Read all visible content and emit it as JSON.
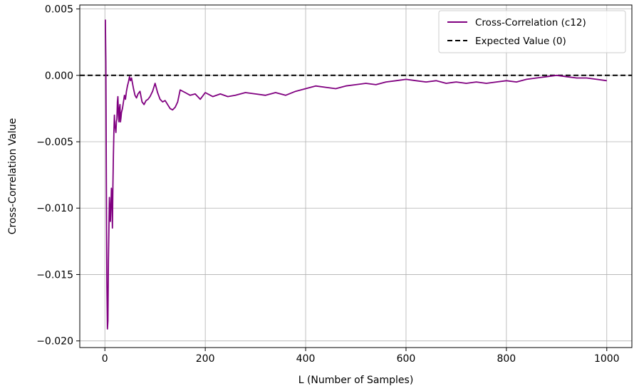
{
  "chart_data": {
    "type": "line",
    "xlabel": "L (Number of Samples)",
    "ylabel": "Cross-Correlation Value",
    "xlim": [
      -50,
      1050
    ],
    "ylim": [
      -0.0205,
      0.0053
    ],
    "x_ticks": [
      0,
      200,
      400,
      600,
      800,
      1000
    ],
    "x_tick_labels": [
      "0",
      "200",
      "400",
      "600",
      "800",
      "1000"
    ],
    "y_ticks": [
      0.005,
      0.0,
      -0.005,
      -0.01,
      -0.015,
      -0.02
    ],
    "y_tick_labels": [
      "0.005",
      "0.000",
      "−0.005",
      "−0.010",
      "−0.015",
      "−0.020"
    ],
    "grid": true,
    "legend_position": "top-right",
    "series": [
      {
        "name": "Cross-Correlation (c12)",
        "color": "#800080",
        "style": "solid",
        "x": [
          1,
          2,
          3,
          4,
          5,
          6,
          7,
          8,
          9,
          10,
          11,
          12,
          13,
          14,
          15,
          16,
          17,
          18,
          19,
          20,
          21,
          22,
          23,
          24,
          25,
          26,
          27,
          28,
          29,
          30,
          31,
          32,
          33,
          35,
          37,
          39,
          41,
          43,
          45,
          47,
          49,
          51,
          53,
          55,
          57,
          60,
          63,
          66,
          70,
          74,
          78,
          82,
          86,
          90,
          95,
          100,
          105,
          110,
          115,
          120,
          125,
          130,
          135,
          140,
          145,
          150,
          160,
          170,
          180,
          190,
          200,
          215,
          230,
          245,
          260,
          280,
          300,
          320,
          340,
          360,
          380,
          400,
          420,
          440,
          460,
          480,
          500,
          520,
          540,
          560,
          580,
          600,
          620,
          640,
          660,
          680,
          700,
          720,
          740,
          760,
          780,
          800,
          820,
          840,
          860,
          880,
          900,
          920,
          940,
          960,
          980,
          1000
        ],
        "y": [
          0.0042,
          0.001,
          -0.008,
          -0.0155,
          -0.0191,
          -0.0185,
          -0.014,
          -0.0115,
          -0.0092,
          -0.0102,
          -0.011,
          -0.0098,
          -0.0085,
          -0.009,
          -0.0115,
          -0.0083,
          -0.006,
          -0.0042,
          -0.003,
          -0.0038,
          -0.004,
          -0.0043,
          -0.0035,
          -0.0033,
          -0.002,
          -0.0016,
          -0.003,
          -0.0035,
          -0.0025,
          -0.0022,
          -0.0035,
          -0.0032,
          -0.0028,
          -0.0025,
          -0.002,
          -0.0015,
          -0.0018,
          -0.0012,
          -0.0008,
          -0.0005,
          -0.0001,
          -0.0004,
          -0.0002,
          -0.0006,
          -0.001,
          -0.0015,
          -0.0017,
          -0.0014,
          -0.0012,
          -0.002,
          -0.0022,
          -0.0019,
          -0.0018,
          -0.0016,
          -0.0012,
          -0.0006,
          -0.0013,
          -0.0018,
          -0.002,
          -0.0019,
          -0.0022,
          -0.0025,
          -0.0026,
          -0.0024,
          -0.002,
          -0.0011,
          -0.0013,
          -0.0015,
          -0.0014,
          -0.0018,
          -0.0013,
          -0.0016,
          -0.0014,
          -0.0016,
          -0.0015,
          -0.0013,
          -0.0014,
          -0.0015,
          -0.0013,
          -0.0015,
          -0.0012,
          -0.001,
          -0.0008,
          -0.0009,
          -0.001,
          -0.0008,
          -0.0007,
          -0.0006,
          -0.0007,
          -0.0005,
          -0.0004,
          -0.0003,
          -0.0004,
          -0.0005,
          -0.0004,
          -0.0006,
          -0.0005,
          -0.0006,
          -0.0005,
          -0.0006,
          -0.0005,
          -0.0004,
          -0.0005,
          -0.0003,
          -0.0002,
          -0.0001,
          0.0,
          -0.0001,
          -0.0002,
          -0.0002,
          -0.0003,
          -0.0004
        ]
      },
      {
        "name": "Expected Value (0)",
        "color": "#000000",
        "style": "dashed",
        "constant_y": 0.0
      }
    ]
  }
}
